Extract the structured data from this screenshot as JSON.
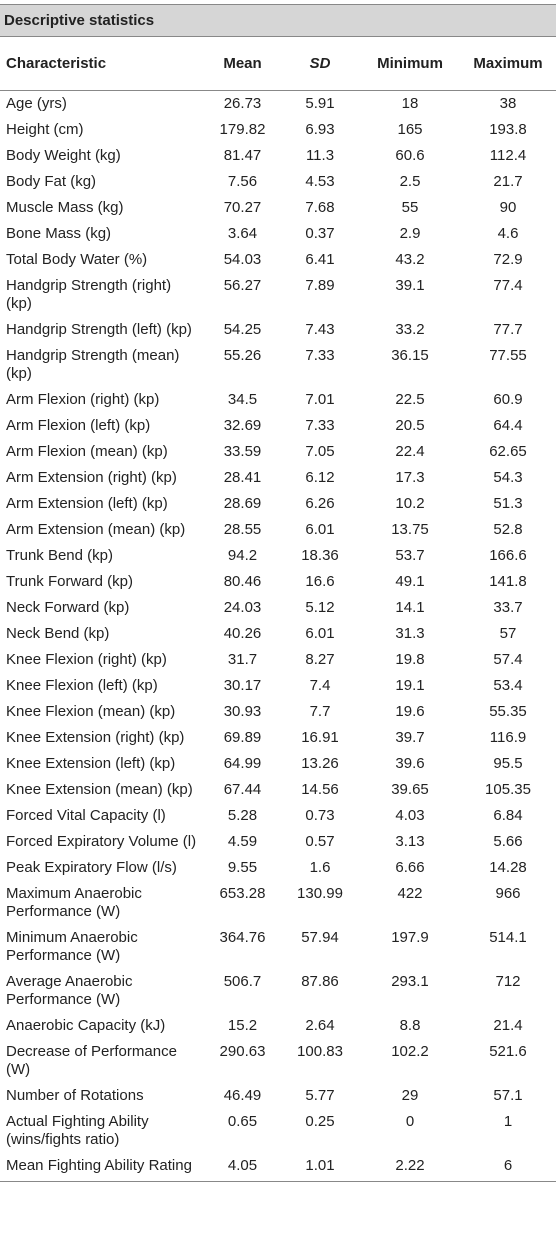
{
  "title": "Descriptive statistics",
  "table": {
    "columns": [
      "Characteristic",
      "Mean",
      "SD",
      "Minimum",
      "Maximum"
    ],
    "rows": [
      [
        "Age (yrs)",
        "26.73",
        "5.91",
        "18",
        "38"
      ],
      [
        "Height (cm)",
        "179.82",
        "6.93",
        "165",
        "193.8"
      ],
      [
        "Body Weight (kg)",
        "81.47",
        "11.3",
        "60.6",
        "112.4"
      ],
      [
        "Body Fat (kg)",
        "7.56",
        "4.53",
        "2.5",
        "21.7"
      ],
      [
        "Muscle Mass (kg)",
        "70.27",
        "7.68",
        "55",
        "90"
      ],
      [
        "Bone Mass (kg)",
        "3.64",
        "0.37",
        "2.9",
        "4.6"
      ],
      [
        "Total Body Water (%)",
        "54.03",
        "6.41",
        "43.2",
        "72.9"
      ],
      [
        "Handgrip Strength (right) (kp)",
        "56.27",
        "7.89",
        "39.1",
        "77.4"
      ],
      [
        "Handgrip Strength (left) (kp)",
        "54.25",
        "7.43",
        "33.2",
        "77.7"
      ],
      [
        "Handgrip Strength (mean) (kp)",
        "55.26",
        "7.33",
        "36.15",
        "77.55"
      ],
      [
        "Arm Flexion (right) (kp)",
        "34.5",
        "7.01",
        "22.5",
        "60.9"
      ],
      [
        "Arm Flexion (left) (kp)",
        "32.69",
        "7.33",
        "20.5",
        "64.4"
      ],
      [
        "Arm Flexion (mean) (kp)",
        "33.59",
        "7.05",
        "22.4",
        "62.65"
      ],
      [
        "Arm Extension (right) (kp)",
        "28.41",
        "6.12",
        "17.3",
        "54.3"
      ],
      [
        "Arm Extension (left) (kp)",
        "28.69",
        "6.26",
        "10.2",
        "51.3"
      ],
      [
        "Arm Extension (mean) (kp)",
        "28.55",
        "6.01",
        "13.75",
        "52.8"
      ],
      [
        "Trunk Bend (kp)",
        "94.2",
        "18.36",
        "53.7",
        "166.6"
      ],
      [
        "Trunk Forward (kp)",
        "80.46",
        "16.6",
        "49.1",
        "141.8"
      ],
      [
        "Neck Forward (kp)",
        "24.03",
        "5.12",
        "14.1",
        "33.7"
      ],
      [
        "Neck Bend (kp)",
        "40.26",
        "6.01",
        "31.3",
        "57"
      ],
      [
        "Knee Flexion (right) (kp)",
        "31.7",
        "8.27",
        "19.8",
        "57.4"
      ],
      [
        "Knee Flexion (left) (kp)",
        "30.17",
        "7.4",
        "19.1",
        "53.4"
      ],
      [
        "Knee Flexion (mean) (kp)",
        "30.93",
        "7.7",
        "19.6",
        "55.35"
      ],
      [
        "Knee Extension (right) (kp)",
        "69.89",
        "16.91",
        "39.7",
        "116.9"
      ],
      [
        "Knee Extension (left) (kp)",
        "64.99",
        "13.26",
        "39.6",
        "95.5"
      ],
      [
        "Knee Extension (mean) (kp)",
        "67.44",
        "14.56",
        "39.65",
        "105.35"
      ],
      [
        "Forced Vital Capacity (l)",
        "5.28",
        "0.73",
        "4.03",
        "6.84"
      ],
      [
        "Forced Expiratory Volume (l)",
        "4.59",
        "0.57",
        "3.13",
        "5.66"
      ],
      [
        "Peak Expiratory Flow (l/s)",
        "9.55",
        "1.6",
        "6.66",
        "14.28"
      ],
      [
        "Maximum Anaerobic Performance (W)",
        "653.28",
        "130.99",
        "422",
        "966"
      ],
      [
        "Minimum Anaerobic Performance (W)",
        "364.76",
        "57.94",
        "197.9",
        "514.1"
      ],
      [
        "Average Anaerobic Performance (W)",
        "506.7",
        "87.86",
        "293.1",
        "712"
      ],
      [
        "Anaerobic Capacity (kJ)",
        "15.2",
        "2.64",
        "8.8",
        "21.4"
      ],
      [
        "Decrease of Performance (W)",
        "290.63",
        "100.83",
        "102.2",
        "521.6"
      ],
      [
        "Number of Rotations",
        "46.49",
        "5.77",
        "29",
        "57.1"
      ],
      [
        "Actual Fighting Ability (wins/fights ratio)",
        "0.65",
        "0.25",
        "0",
        "1"
      ],
      [
        "Mean Fighting Ability Rating",
        "4.05",
        "1.01",
        "2.22",
        "6"
      ]
    ]
  }
}
